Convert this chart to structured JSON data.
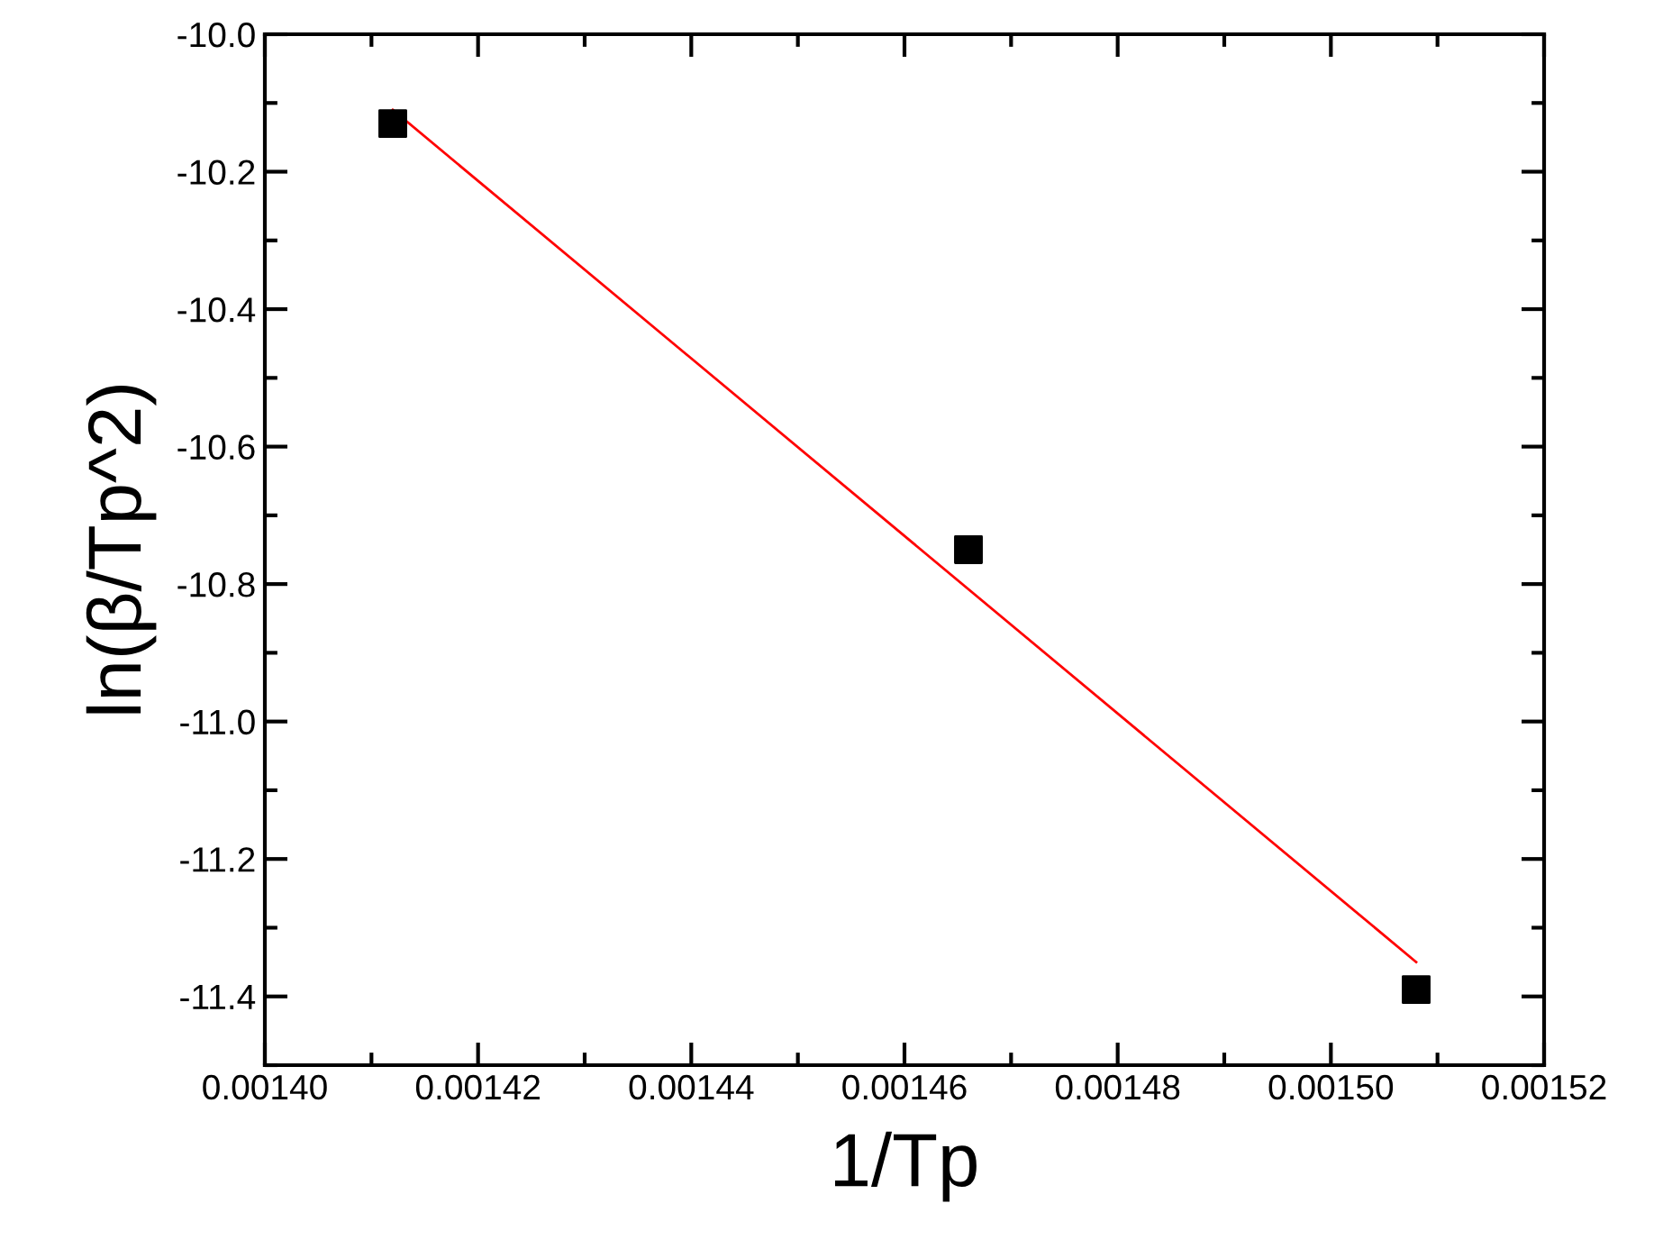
{
  "chart_data": {
    "type": "scatter",
    "xlabel": "1/Tp",
    "ylabel": "ln(β/Tp^2)",
    "xlim": [
      0.0014,
      0.00152
    ],
    "ylim": [
      -11.5,
      -10.0
    ],
    "xticks": [
      {
        "value": 0.0014,
        "label": "0.00140"
      },
      {
        "value": 0.00142,
        "label": "0.00142"
      },
      {
        "value": 0.00144,
        "label": "0.00144"
      },
      {
        "value": 0.00146,
        "label": "0.00146"
      },
      {
        "value": 0.00148,
        "label": "0.00148"
      },
      {
        "value": 0.0015,
        "label": "0.00150"
      },
      {
        "value": 0.00152,
        "label": "0.00152"
      }
    ],
    "yticks": [
      {
        "value": -10.0,
        "label": "-10.0"
      },
      {
        "value": -10.2,
        "label": "-10.2"
      },
      {
        "value": -10.4,
        "label": "-10.4"
      },
      {
        "value": -10.6,
        "label": "-10.6"
      },
      {
        "value": -10.8,
        "label": "-10.8"
      },
      {
        "value": -11.0,
        "label": "-11.0"
      },
      {
        "value": -11.2,
        "label": "-11.2"
      },
      {
        "value": -11.4,
        "label": "-11.4"
      }
    ],
    "grid": false,
    "legend": false,
    "series": [
      {
        "color": "#000000",
        "marker": "square",
        "x": [
          0.001412,
          0.001466,
          0.001508
        ],
        "values": [
          -10.13,
          -10.75,
          -11.39
        ]
      },
      {
        "type": "line",
        "color": "#ff0000",
        "marker": "none",
        "line_style": "solid",
        "x": [
          0.001412,
          0.001508
        ],
        "values": [
          -10.11,
          -11.35
        ]
      }
    ]
  }
}
